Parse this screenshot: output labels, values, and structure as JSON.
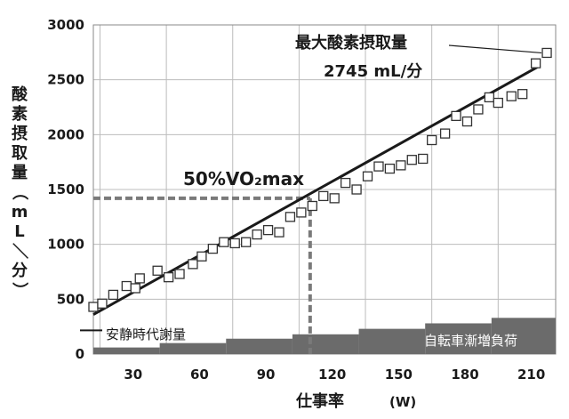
{
  "chart_data": {
    "type": "scatter",
    "ylabel": "酸素摂取量（mL／分）",
    "xlabel": "仕事率",
    "xlabel_unit": "(W)",
    "ylim": [
      0,
      3000
    ],
    "y_ticks": [
      0,
      500,
      1000,
      1500,
      2000,
      2500,
      3000
    ],
    "x_ticks": [
      30,
      60,
      90,
      120,
      150,
      180,
      210
    ],
    "grid": true,
    "points": [
      {
        "x": 12,
        "y": 430
      },
      {
        "x": 16,
        "y": 460
      },
      {
        "x": 21,
        "y": 540
      },
      {
        "x": 27,
        "y": 620
      },
      {
        "x": 31,
        "y": 600
      },
      {
        "x": 33,
        "y": 690
      },
      {
        "x": 41,
        "y": 760
      },
      {
        "x": 46,
        "y": 700
      },
      {
        "x": 51,
        "y": 730
      },
      {
        "x": 57,
        "y": 820
      },
      {
        "x": 61,
        "y": 890
      },
      {
        "x": 66,
        "y": 960
      },
      {
        "x": 71,
        "y": 1020
      },
      {
        "x": 76,
        "y": 1010
      },
      {
        "x": 81,
        "y": 1020
      },
      {
        "x": 86,
        "y": 1090
      },
      {
        "x": 91,
        "y": 1130
      },
      {
        "x": 96,
        "y": 1110
      },
      {
        "x": 101,
        "y": 1250
      },
      {
        "x": 106,
        "y": 1290
      },
      {
        "x": 111,
        "y": 1350
      },
      {
        "x": 116,
        "y": 1440
      },
      {
        "x": 121,
        "y": 1420
      },
      {
        "x": 126,
        "y": 1560
      },
      {
        "x": 131,
        "y": 1500
      },
      {
        "x": 136,
        "y": 1620
      },
      {
        "x": 141,
        "y": 1710
      },
      {
        "x": 146,
        "y": 1690
      },
      {
        "x": 151,
        "y": 1720
      },
      {
        "x": 156,
        "y": 1770
      },
      {
        "x": 161,
        "y": 1780
      },
      {
        "x": 165,
        "y": 1950
      },
      {
        "x": 171,
        "y": 2010
      },
      {
        "x": 176,
        "y": 2170
      },
      {
        "x": 181,
        "y": 2120
      },
      {
        "x": 186,
        "y": 2230
      },
      {
        "x": 191,
        "y": 2340
      },
      {
        "x": 195,
        "y": 2290
      },
      {
        "x": 201,
        "y": 2350
      },
      {
        "x": 206,
        "y": 2370
      },
      {
        "x": 212,
        "y": 2650
      },
      {
        "x": 217,
        "y": 2745
      }
    ],
    "trend_line": {
      "x": [
        12,
        214
      ],
      "y": [
        360,
        2630
      ]
    },
    "workload_stages": [
      {
        "x_start": 12,
        "x_end": 42,
        "y": 60
      },
      {
        "x_start": 42,
        "x_end": 72,
        "y": 100
      },
      {
        "x_start": 72,
        "x_end": 102,
        "y": 140
      },
      {
        "x_start": 102,
        "x_end": 132,
        "y": 180
      },
      {
        "x_start": 132,
        "x_end": 162,
        "y": 230
      },
      {
        "x_start": 162,
        "x_end": 192,
        "y": 280
      },
      {
        "x_start": 192,
        "x_end": 221,
        "y": 330
      }
    ],
    "resting_metabolism_y": 200,
    "vo2_50_percent": {
      "x": 110,
      "y": 1420
    },
    "max_vo2_value": 2745,
    "annotations": {
      "max_title": "最大酸素摂取量",
      "max_value": "2745 mL/分",
      "vo2_label": "50%VO₂max",
      "resting_label": "安静時代謝量",
      "load_label": "自転車漸増負荷"
    },
    "colors": {
      "bars": "#6b6b6b",
      "line": "#1a1a1a",
      "dashed": "#7a7a7a",
      "grid": "#bcbcbc"
    }
  }
}
